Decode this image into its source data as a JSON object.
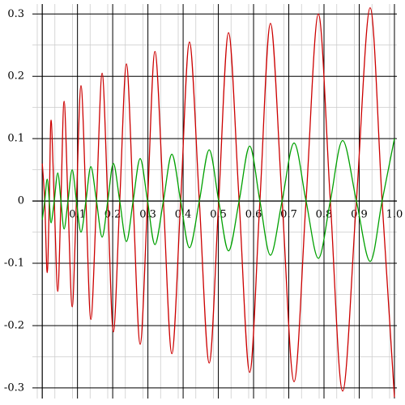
{
  "chart_data": {
    "type": "line",
    "x": [
      0,
      0.007,
      0.014,
      0.02,
      0.025,
      0.034,
      0.044,
      0.053,
      0.062,
      0.073,
      0.085,
      0.097,
      0.11,
      0.124,
      0.138,
      0.154,
      0.17,
      0.186,
      0.202,
      0.22,
      0.239,
      0.258,
      0.278,
      0.299,
      0.32,
      0.344,
      0.368,
      0.393,
      0.418,
      0.446,
      0.474,
      0.501,
      0.529,
      0.559,
      0.589,
      0.618,
      0.648,
      0.681,
      0.715,
      0.749,
      0.784,
      0.818,
      0.853,
      0.892,
      0.931,
      0.965,
      1.0
    ],
    "series": [
      {
        "color": "#cc0000",
        "values": [
          0.06,
          0,
          -0.115,
          0,
          0.13,
          0,
          -0.145,
          0,
          0.16,
          0,
          -0.17,
          0,
          0.185,
          0,
          -0.19,
          0,
          0.205,
          0,
          -0.21,
          0,
          0.22,
          0,
          -0.23,
          0,
          0.24,
          0,
          -0.245,
          0,
          0.255,
          0,
          -0.26,
          0,
          0.27,
          0,
          -0.275,
          0,
          0.285,
          0,
          -0.29,
          0,
          0.3,
          0,
          -0.305,
          0,
          0.31,
          0,
          -0.315
        ]
      },
      {
        "color": "#00a000",
        "values": [
          -0.03,
          0,
          0.035,
          0,
          -0.035,
          0,
          0.045,
          0,
          -0.045,
          0,
          0.05,
          0,
          -0.05,
          0,
          0.055,
          0,
          -0.058,
          0,
          0.06,
          0,
          -0.065,
          0,
          0.068,
          0,
          -0.07,
          0,
          0.075,
          0,
          -0.075,
          0,
          0.082,
          0,
          -0.08,
          0,
          0.088,
          0,
          -0.087,
          0,
          0.093,
          0,
          -0.092,
          0,
          0.097,
          0,
          -0.097,
          0,
          0.1
        ]
      }
    ],
    "xlim": [
      -0.028,
      1.007
    ],
    "ylim": [
      -0.317,
      0.316
    ],
    "xticks": [
      0.1,
      0.2,
      0.3,
      0.4,
      0.5,
      0.6,
      0.7,
      0.8,
      0.9,
      {
        "value": 1,
        "label": "1.0"
      }
    ],
    "yticks": [
      -0.3,
      -0.2,
      -0.1,
      0,
      0.1,
      0.2,
      0.3
    ],
    "grid": true
  }
}
